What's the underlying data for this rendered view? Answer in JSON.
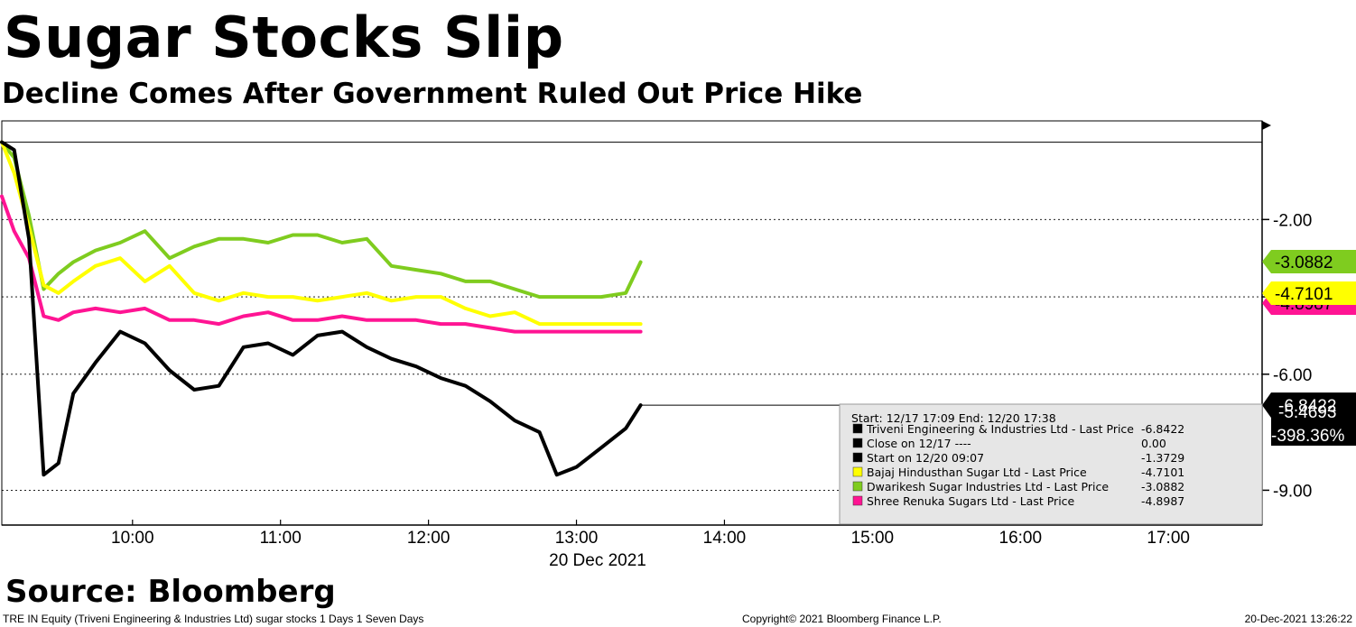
{
  "header": {
    "title": "Sugar Stocks Slip",
    "subtitle": "Decline Comes After Government Ruled Out Price Hike"
  },
  "footer": {
    "source": "Source: Bloomberg",
    "description": "TRE IN Equity (Triveni Engineering & Industries Ltd) sugar stocks 1 Days 1 Seven Days",
    "copyright": "Copyright© 2021 Bloomberg Finance L.P.",
    "timestamp": "20-Dec-2021 13:26:22"
  },
  "chart_data": {
    "type": "line",
    "title": "Sugar Stocks Slip",
    "subtitle": "Decline Comes After Government Ruled Out Price Hike",
    "xlabel": "20 Dec 2021",
    "ylabel": "",
    "x_ticks": [
      "10:00",
      "11:00",
      "12:00",
      "13:00",
      "14:00",
      "15:00",
      "16:00",
      "17:00"
    ],
    "y_ticks": [
      "-2.00",
      "-4.00",
      "-6.00",
      "-9.00"
    ],
    "y_tick_values": [
      -2,
      -4,
      -6,
      -9
    ],
    "xlim": [
      "09:07",
      "17:38"
    ],
    "ylim": [
      -9.9,
      0.55
    ],
    "grid": true,
    "x": [
      "09:07",
      "09:12",
      "09:18",
      "09:24",
      "09:30",
      "09:36",
      "09:45",
      "09:55",
      "10:05",
      "10:15",
      "10:25",
      "10:35",
      "10:45",
      "10:55",
      "11:05",
      "11:15",
      "11:25",
      "11:35",
      "11:45",
      "11:55",
      "12:05",
      "12:15",
      "12:25",
      "12:35",
      "12:45",
      "12:52",
      "13:00",
      "13:10",
      "13:20",
      "13:26"
    ],
    "series": [
      {
        "name": "Triveni Engineering & Industries Ltd - Last Price",
        "color": "#000000",
        "last_value": "-6.8422",
        "values": [
          0.0,
          -0.2,
          -2.5,
          -8.6,
          -8.3,
          -6.5,
          -5.7,
          -4.9,
          -5.2,
          -5.9,
          -6.4,
          -6.3,
          -5.3,
          -5.2,
          -5.5,
          -5.0,
          -4.9,
          -5.3,
          -5.6,
          -5.8,
          -6.1,
          -6.3,
          -6.7,
          -7.2,
          -7.5,
          -8.6,
          -8.4,
          -7.9,
          -7.4,
          -6.8
        ]
      },
      {
        "name": "Close on 12/17 ----",
        "color": "#000000",
        "last_value": "0.00"
      },
      {
        "name": "Start on 12/20 09:07",
        "color": "#000000",
        "last_value": "-1.3729"
      },
      {
        "name": "Bajaj Hindusthan Sugar Ltd - Last Price",
        "color": "#ffff00",
        "last_value": "-4.7101",
        "values": [
          0.0,
          -0.8,
          -2.2,
          -3.7,
          -3.9,
          -3.6,
          -3.2,
          -3.0,
          -3.6,
          -3.2,
          -3.9,
          -4.1,
          -3.9,
          -4.0,
          -4.0,
          -4.1,
          -4.0,
          -3.9,
          -4.1,
          -4.0,
          -4.0,
          -4.3,
          -4.5,
          -4.4,
          -4.7,
          -4.7,
          -4.7,
          -4.7,
          -4.7,
          -4.7
        ]
      },
      {
        "name": "Dwarikesh Sugar Industries Ltd - Last Price",
        "color": "#7fcc1f",
        "last_value": "-3.0882",
        "values": [
          0.0,
          -0.4,
          -1.9,
          -3.8,
          -3.4,
          -3.1,
          -2.8,
          -2.6,
          -2.3,
          -3.0,
          -2.7,
          -2.5,
          -2.5,
          -2.6,
          -2.4,
          -2.4,
          -2.6,
          -2.5,
          -3.2,
          -3.3,
          -3.4,
          -3.6,
          -3.6,
          -3.8,
          -4.0,
          -4.0,
          -4.0,
          -4.0,
          -3.9,
          -3.1
        ]
      },
      {
        "name": "Shree Renuka Sugars Ltd - Last Price",
        "color": "#ff1493",
        "last_value": "-4.8987",
        "values": [
          -1.4,
          -2.3,
          -3.0,
          -4.5,
          -4.6,
          -4.4,
          -4.3,
          -4.4,
          -4.3,
          -4.6,
          -4.6,
          -4.7,
          -4.5,
          -4.4,
          -4.6,
          -4.6,
          -4.5,
          -4.6,
          -4.6,
          -4.6,
          -4.7,
          -4.7,
          -4.8,
          -4.9,
          -4.9,
          -4.9,
          -4.9,
          -4.9,
          -4.9,
          -4.9
        ]
      }
    ],
    "right_axis_labels": [
      {
        "text": "-3.0882",
        "color": "#7fcc1f"
      },
      {
        "text": "-4.7101",
        "color": "#ffff00"
      },
      {
        "text": "-4.8987",
        "color": "#ff1493"
      },
      {
        "text": "-6.8422",
        "color": "#000000"
      },
      {
        "text": "-5.4693",
        "color": "#000000"
      },
      {
        "text": "-398.36%",
        "color": "#000000"
      }
    ],
    "legend": {
      "placement": "bottom-right",
      "header": "Start: 12/17 17:09 End: 12/20 17:38",
      "entries": [
        {
          "label": "Triveni Engineering & Industries Ltd - Last Price",
          "value": "-6.8422",
          "color": "#000000"
        },
        {
          "label": "Close on 12/17 ----",
          "value": "0.00",
          "color": "#000000"
        },
        {
          "label": "Start on 12/20 09:07",
          "value": "-1.3729",
          "color": "#000000"
        },
        {
          "label": "Bajaj Hindusthan Sugar Ltd - Last Price",
          "value": "-4.7101",
          "color": "#ffff00"
        },
        {
          "label": "Dwarikesh Sugar Industries Ltd - Last Price",
          "value": "-3.0882",
          "color": "#7fcc1f"
        },
        {
          "label": "Shree Renuka Sugars Ltd - Last Price",
          "value": "-4.8987",
          "color": "#ff1493"
        }
      ]
    }
  }
}
